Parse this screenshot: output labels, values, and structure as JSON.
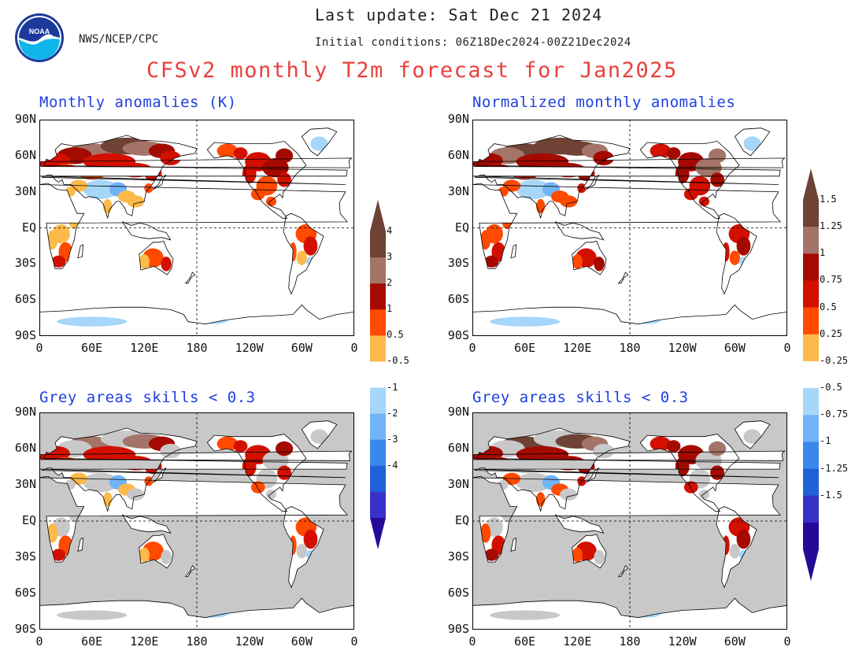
{
  "header": {
    "last_update": "Last update: Sat Dec 21 2024",
    "initial_conditions": "Initial conditions: 06Z18Dec2024-00Z21Dec2024",
    "org": "NWS/NCEP/CPC",
    "title": "CFSv2 monthly T2m forecast for Jan2025",
    "logo_text": "NOAA"
  },
  "chart_data": [
    {
      "type": "heatmap",
      "title": "Monthly anomalies (K)",
      "colorbar": {
        "labels": [
          "4",
          "3",
          "2",
          "1",
          "0.5",
          "-0.5",
          "-1",
          "-2",
          "-3",
          "-4"
        ]
      },
      "masked": false
    },
    {
      "type": "heatmap",
      "title": "Normalized monthly anomalies",
      "colorbar": {
        "labels": [
          "1.5",
          "1.25",
          "1",
          "0.75",
          "0.5",
          "0.25",
          "-0.25",
          "-0.5",
          "-0.75",
          "-1",
          "-1.25",
          "-1.5"
        ]
      },
      "masked": false
    },
    {
      "type": "heatmap",
      "title": "Grey areas skills < 0.3",
      "masked": true
    },
    {
      "type": "heatmap",
      "title": "Grey areas skills < 0.3",
      "masked": true
    }
  ],
  "axes": {
    "y_ticks": [
      "90N",
      "60N",
      "30N",
      "EQ",
      "30S",
      "60S",
      "90S"
    ],
    "x_ticks": [
      "0",
      "60E",
      "120E",
      "180",
      "120W",
      "60W",
      "0"
    ]
  },
  "colors": {
    "warm": [
      "#ffffff",
      "#fdb94a",
      "#ff4a00",
      "#d31000",
      "#a50a00",
      "#a47468",
      "#6e4234"
    ],
    "cold": [
      "#ffffff",
      "#a6d6f9",
      "#72b4f6",
      "#3b88ec",
      "#2060d8",
      "#3832c8",
      "#250a9a"
    ],
    "mask": "#c8c8c8",
    "title_red": "#e8413d",
    "title_blue": "#1f3fe0"
  }
}
